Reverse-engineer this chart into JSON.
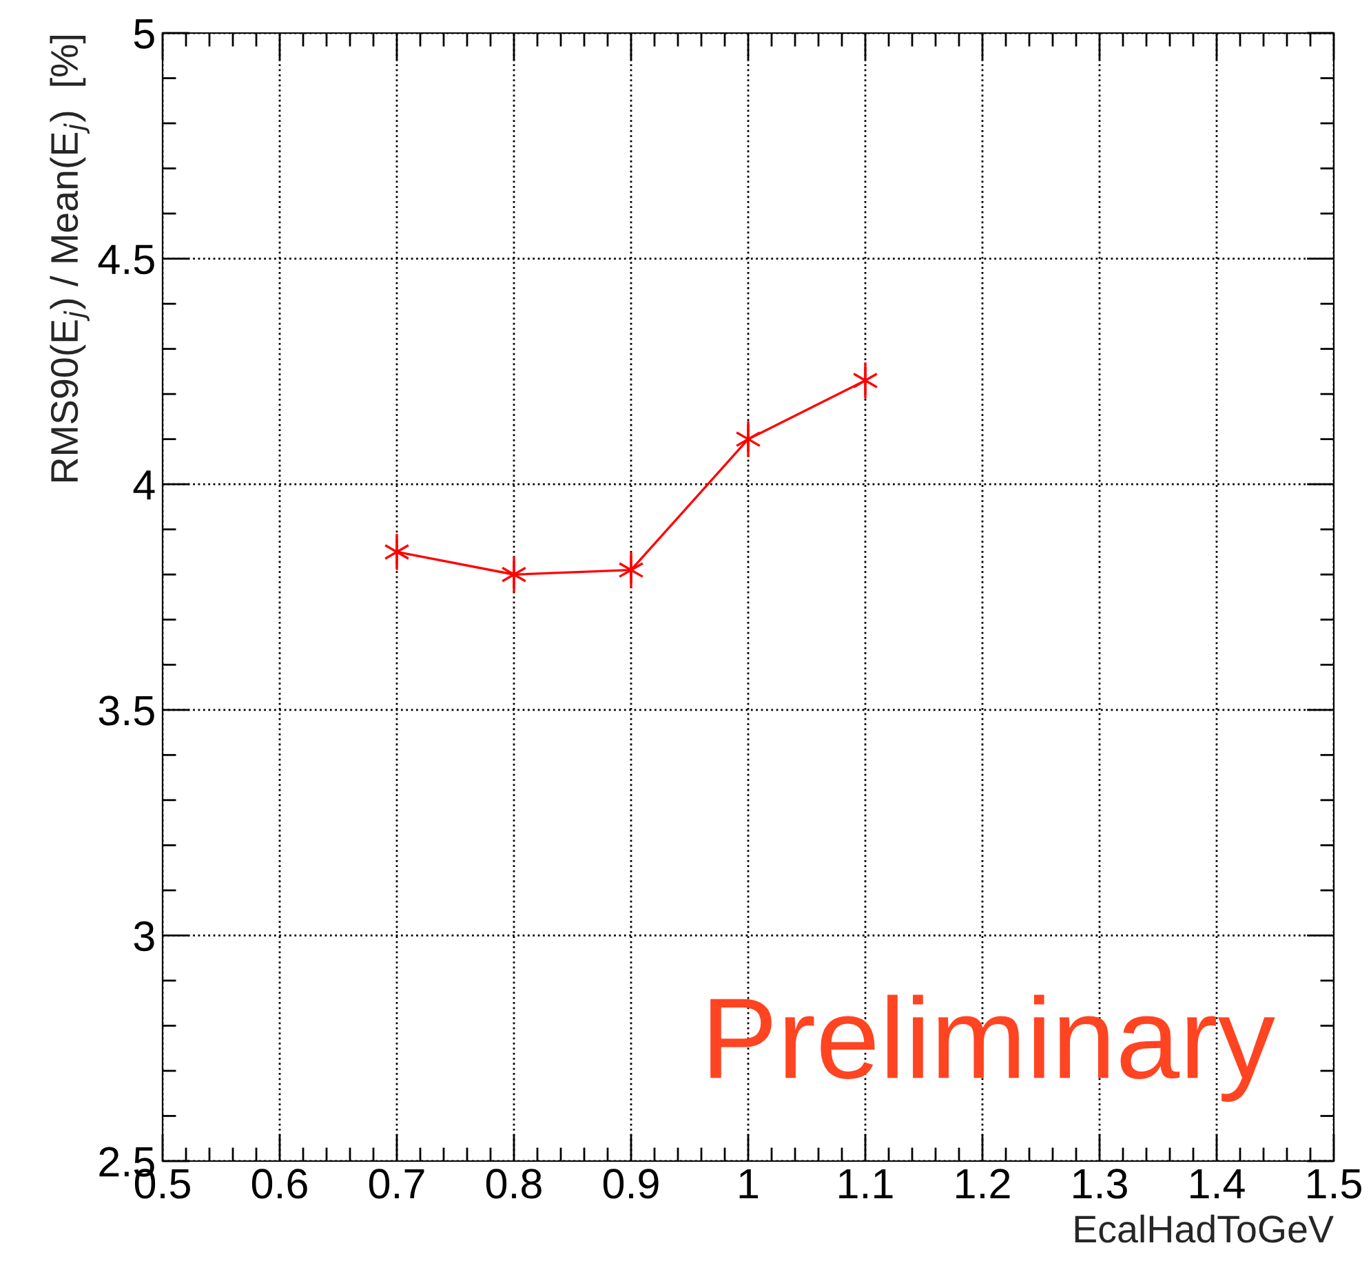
{
  "chart_data": {
    "type": "line",
    "xlabel": "EcalHadToGeV",
    "ylabel": "RMS90(E$_{j}$) / Mean(E$_{j}$)  [%]",
    "x": [
      0.7,
      0.8,
      0.9,
      1.0,
      1.1
    ],
    "series": [
      {
        "color": "#ff0000",
        "values": [
          3.85,
          3.8,
          3.81,
          4.1,
          4.23
        ],
        "errors": [
          0.04,
          0.04,
          0.04,
          0.04,
          0.04
        ]
      }
    ],
    "xlim": [
      0.5,
      1.5
    ],
    "xticks": [
      0.5,
      0.6,
      0.7,
      0.8,
      0.9,
      1,
      1.1,
      1.2,
      1.3,
      1.4,
      1.5
    ],
    "ylim": [
      2.5,
      5
    ],
    "yticks": [
      2.5,
      3,
      3.5,
      4,
      4.5,
      5
    ],
    "grid": true,
    "marker": "cross",
    "line_style": "solid",
    "annotations": [
      {
        "text": "Preliminary"
      }
    ]
  }
}
